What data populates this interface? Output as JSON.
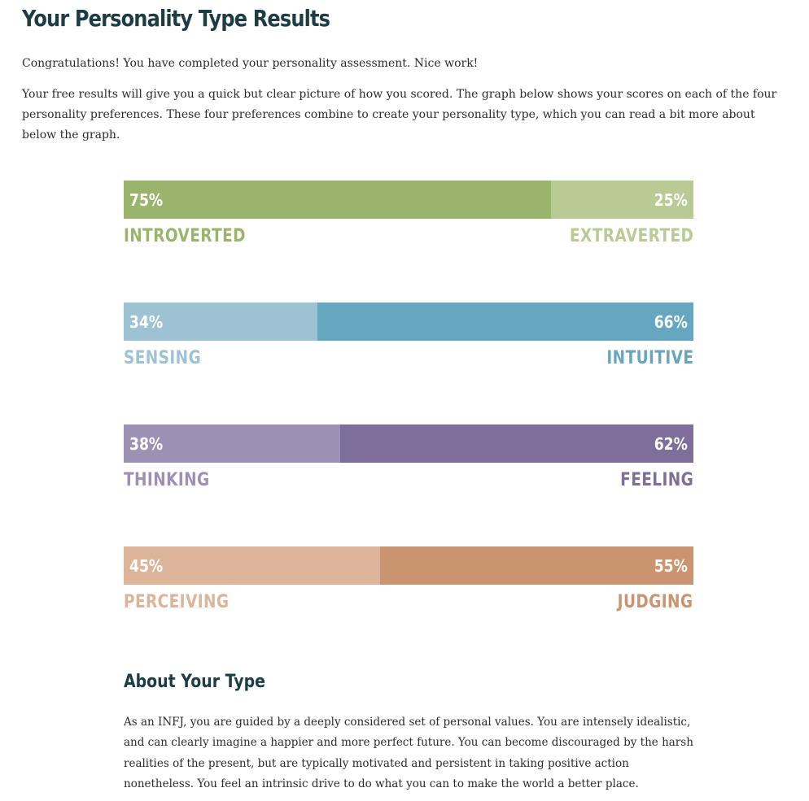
{
  "header": {
    "title": "Your Personality Type Results"
  },
  "intro": {
    "congrats": "Congratulations! You have completed your personality assessment. Nice work!",
    "explanation": "Your free results will give you a quick but clear picture of how you scored. The graph below shows your scores on each of the four personality preferences. These four preferences combine to create your personality type, which you can read a bit more about below the graph."
  },
  "chart_data": {
    "type": "bar",
    "series": [
      {
        "left_label": "INTROVERTED",
        "right_label": "EXTRAVERTED",
        "left_value": 75,
        "right_value": 25,
        "left_text": "75%",
        "right_text": "25%",
        "left_color": "#9bb46c",
        "right_color": "#b9ca94"
      },
      {
        "left_label": "SENSING",
        "right_label": "INTUITIVE",
        "left_value": 34,
        "right_value": 66,
        "left_text": "34%",
        "right_text": "66%",
        "left_color": "#9dc2d3",
        "right_color": "#66a6c0"
      },
      {
        "left_label": "THINKING",
        "right_label": "FEELING",
        "left_value": 38,
        "right_value": 62,
        "left_text": "38%",
        "right_text": "62%",
        "left_color": "#9c90b4",
        "right_color": "#7d6f99"
      },
      {
        "left_label": "PERCEIVING",
        "right_label": "JUDGING",
        "left_value": 45,
        "right_value": 55,
        "left_text": "45%",
        "right_text": "55%",
        "left_color": "#dcb49a",
        "right_color": "#cb9470"
      }
    ]
  },
  "about": {
    "title": "About Your Type",
    "body": "As an INFJ, you are guided by a deeply considered set of personal values. You are intensely idealistic, and can clearly imagine a happier and more perfect future. You can become discouraged by the harsh realities of the present, but are typically motivated and persistent in taking positive action nonetheless. You feel an intrinsic drive to do what you can to make the world a better place."
  }
}
